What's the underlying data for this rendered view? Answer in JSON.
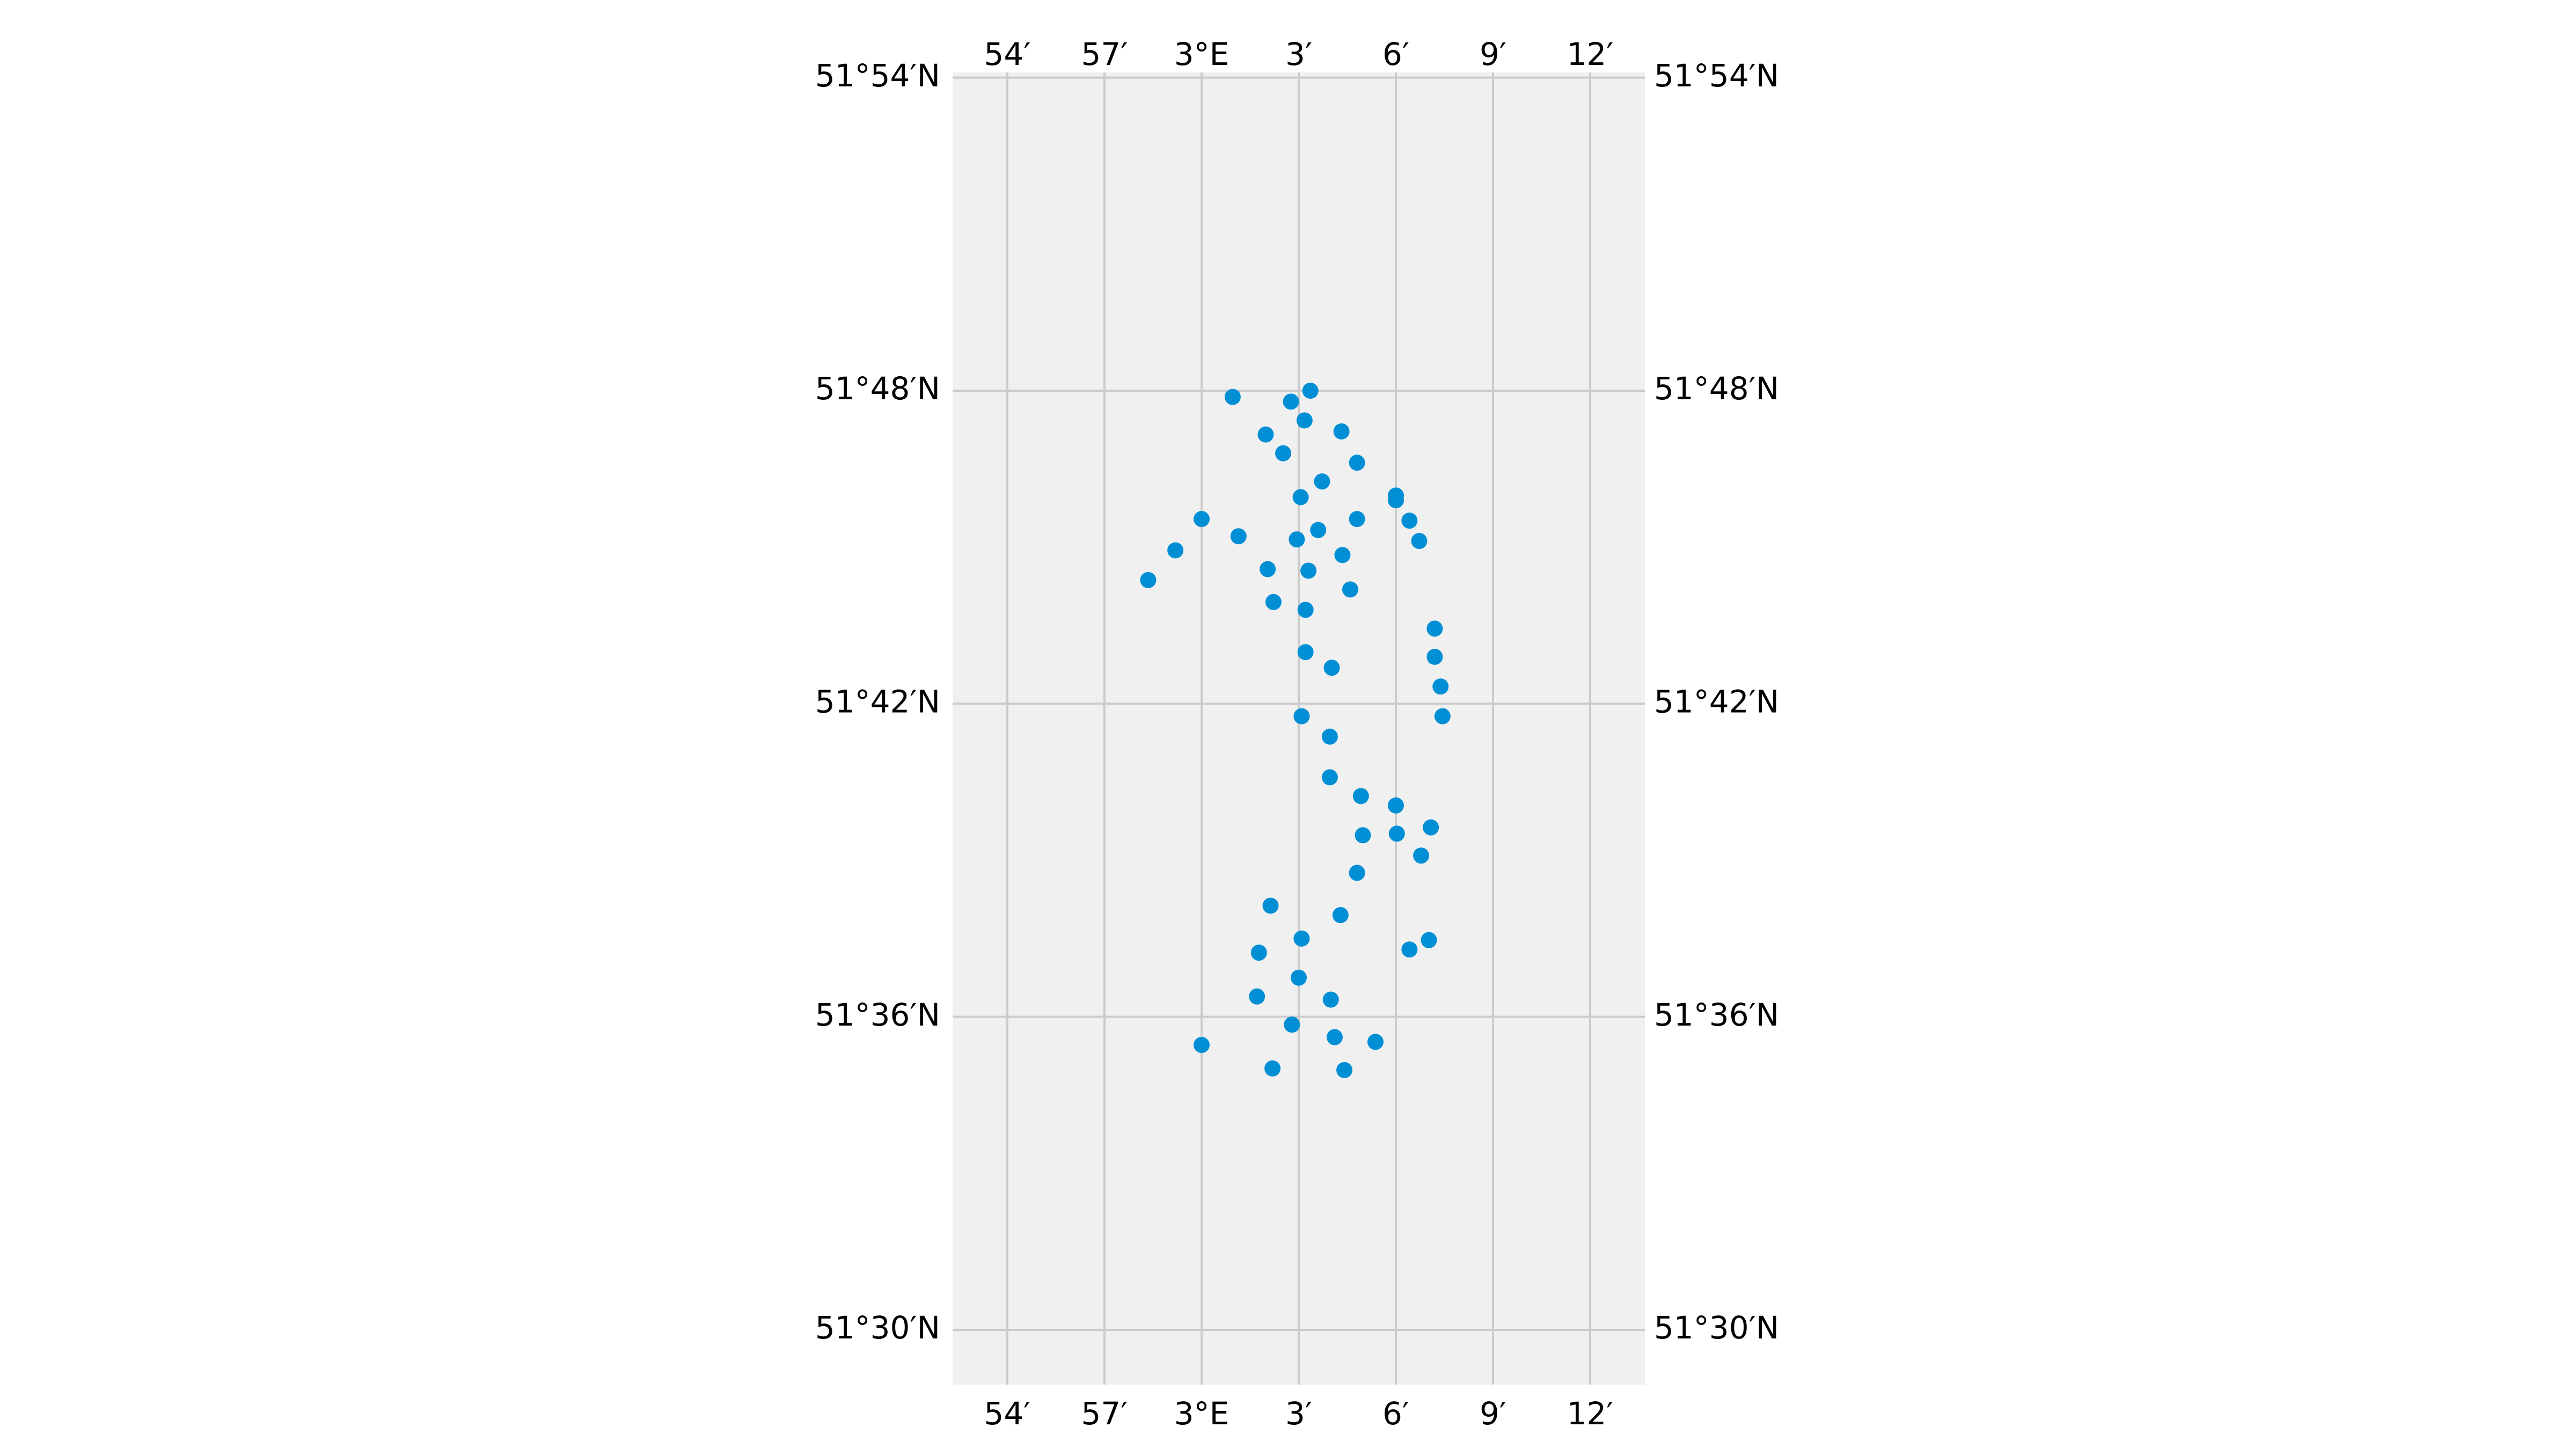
{
  "chart_data": {
    "type": "scatter",
    "title": "",
    "xlabel": "",
    "ylabel": "",
    "xlim": [
      2.9167,
      3.2267
    ],
    "ylim": [
      51.4833,
      51.9
    ],
    "grid": true,
    "colors": {
      "background": "#f0f0f0",
      "grid": "#cbcbcb",
      "marker": "#008fd5"
    },
    "x_ticks": [
      {
        "value": 2.9,
        "label": "54′"
      },
      {
        "value": 2.95,
        "label": "57′"
      },
      {
        "value": 3.0,
        "label": "3°E"
      },
      {
        "value": 3.05,
        "label": "3′"
      },
      {
        "value": 3.1,
        "label": "6′"
      },
      {
        "value": 3.15,
        "label": "9′"
      },
      {
        "value": 3.2,
        "label": "12′"
      }
    ],
    "y_ticks": [
      {
        "value": 51.9,
        "label": "51°54′N"
      },
      {
        "value": 51.8,
        "label": "51°48′N"
      },
      {
        "value": 51.7,
        "label": "51°42′N"
      },
      {
        "value": 51.6,
        "label": "51°36′N"
      },
      {
        "value": 51.5,
        "label": "51°30′N"
      }
    ],
    "points": [
      [
        3.016,
        51.798
      ],
      [
        3.046,
        51.7965
      ],
      [
        3.056,
        51.8
      ],
      [
        3.033,
        51.786
      ],
      [
        3.053,
        51.7905
      ],
      [
        3.072,
        51.787
      ],
      [
        3.042,
        51.78
      ],
      [
        3.08,
        51.777
      ],
      [
        3.062,
        51.771
      ],
      [
        3.051,
        51.766
      ],
      [
        3.1,
        51.7665
      ],
      [
        3.1,
        51.765
      ],
      [
        3.0,
        51.759
      ],
      [
        3.08,
        51.759
      ],
      [
        3.107,
        51.7585
      ],
      [
        3.019,
        51.7535
      ],
      [
        3.06,
        51.7555
      ],
      [
        3.049,
        51.7525
      ],
      [
        3.112,
        51.752
      ],
      [
        2.9865,
        51.749
      ],
      [
        3.034,
        51.743
      ],
      [
        3.0725,
        51.7475
      ],
      [
        3.0765,
        51.7365
      ],
      [
        2.9725,
        51.7395
      ],
      [
        3.055,
        51.7425
      ],
      [
        3.037,
        51.7325
      ],
      [
        3.0535,
        51.73
      ],
      [
        3.12,
        51.724
      ],
      [
        3.12,
        51.715
      ],
      [
        3.0535,
        51.7165
      ],
      [
        3.067,
        51.7115
      ],
      [
        3.123,
        51.7055
      ],
      [
        3.124,
        51.696
      ],
      [
        3.0515,
        51.696
      ],
      [
        3.066,
        51.6895
      ],
      [
        3.066,
        51.6765
      ],
      [
        3.082,
        51.6705
      ],
      [
        3.1,
        51.6675
      ],
      [
        3.118,
        51.6605
      ],
      [
        3.083,
        51.658
      ],
      [
        3.1005,
        51.6585
      ],
      [
        3.113,
        51.6515
      ],
      [
        3.08,
        51.646
      ],
      [
        3.0355,
        51.6355
      ],
      [
        3.0715,
        51.6325
      ],
      [
        3.0515,
        51.625
      ],
      [
        3.0295,
        51.6205
      ],
      [
        3.107,
        51.6215
      ],
      [
        3.117,
        51.6245
      ],
      [
        3.05,
        51.6125
      ],
      [
        3.0285,
        51.6065
      ],
      [
        3.0665,
        51.6055
      ],
      [
        3.0465,
        51.5975
      ],
      [
        3.0,
        51.591
      ],
      [
        3.0685,
        51.5935
      ],
      [
        3.0895,
        51.592
      ],
      [
        3.0365,
        51.5835
      ],
      [
        3.0735,
        51.583
      ]
    ]
  }
}
